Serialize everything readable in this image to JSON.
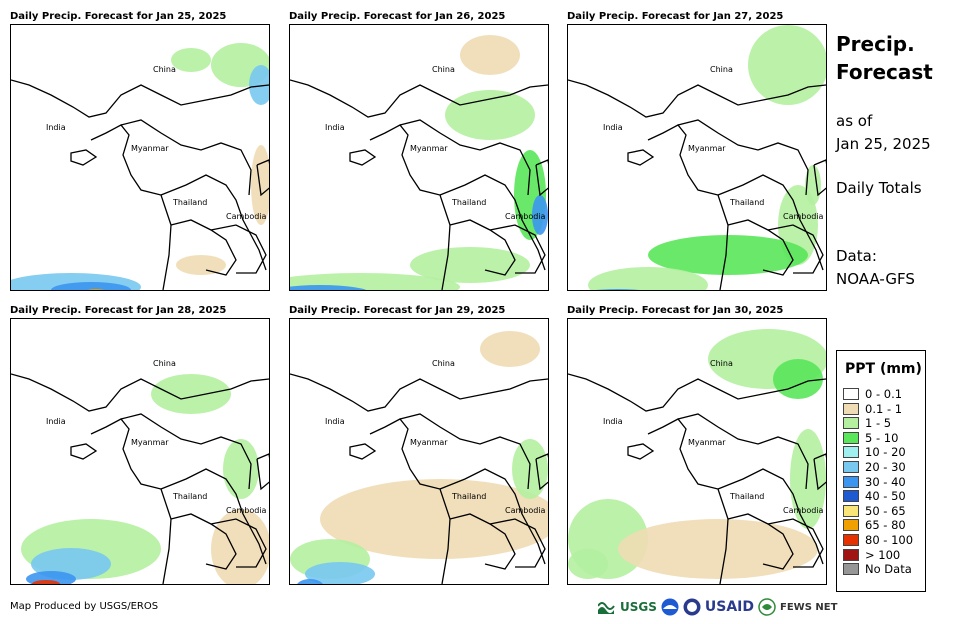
{
  "panels": [
    {
      "title": "Daily Precip. Forecast for Jan 25, 2025"
    },
    {
      "title": "Daily Precip. Forecast for Jan 26, 2025"
    },
    {
      "title": "Daily Precip. Forecast for Jan 27, 2025"
    },
    {
      "title": "Daily Precip. Forecast for Jan 28, 2025"
    },
    {
      "title": "Daily Precip. Forecast for Jan 29, 2025"
    },
    {
      "title": "Daily Precip. Forecast for Jan 30, 2025"
    }
  ],
  "map_labels": {
    "china": "China",
    "india": "India",
    "myanmar": "Myanmar",
    "thailand": "Thailand",
    "cambodia": "Cambodia"
  },
  "side": {
    "title_line1": "Precip.",
    "title_line2": "Forecast",
    "asof_line1": "as of",
    "asof_line2": "Jan 25, 2025",
    "daily": "Daily Totals",
    "data_line1": "Data:",
    "data_line2": "NOAA-GFS"
  },
  "legend": {
    "title": "PPT (mm)",
    "items": [
      {
        "label": "0 - 0.1",
        "color": "#ffffff"
      },
      {
        "label": "0.1 - 1",
        "color": "#f0dcb4"
      },
      {
        "label": "1 - 5",
        "color": "#b4f0a0"
      },
      {
        "label": "5 - 10",
        "color": "#5ae65a"
      },
      {
        "label": "10 - 20",
        "color": "#a0f0f0"
      },
      {
        "label": "20 - 30",
        "color": "#78c8f0"
      },
      {
        "label": "30 - 40",
        "color": "#3c96f0"
      },
      {
        "label": "40 - 50",
        "color": "#1e5ad2"
      },
      {
        "label": "50 - 65",
        "color": "#fae678"
      },
      {
        "label": "65 - 80",
        "color": "#f0a000"
      },
      {
        "label": "80 - 100",
        "color": "#e63200"
      },
      {
        "label": "> 100",
        "color": "#a01414"
      },
      {
        "label": "No Data",
        "color": "#969696"
      }
    ]
  },
  "footer": {
    "credit": "Map Produced by USGS/EROS",
    "logo_usgs": "USGS",
    "logo_usaid": "USAID",
    "logo_fews": "FEWS NET"
  }
}
